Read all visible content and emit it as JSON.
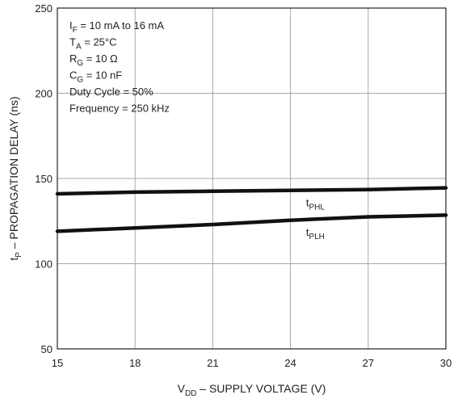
{
  "chart_data": {
    "type": "line",
    "xlabel": {
      "main": "V",
      "sub": "DD",
      "rest": " – SUPPLY VOLTAGE (V)"
    },
    "ylabel": {
      "main": "t",
      "sub": "P",
      "rest": " – PROPAGATION DELAY (ns)"
    },
    "xlim": [
      15,
      30
    ],
    "ylim": [
      50,
      250
    ],
    "xticks": [
      "15",
      "18",
      "21",
      "24",
      "27",
      "30"
    ],
    "yticks": [
      "50",
      "100",
      "150",
      "200",
      "250"
    ],
    "grid": true,
    "conditions": [
      {
        "main": "I",
        "sub": "F",
        "rest": " = 10 mA to 16 mA"
      },
      {
        "main": "T",
        "sub": "A",
        "rest": " = 25°C"
      },
      {
        "main": "R",
        "sub": "G",
        "rest": " = 10 Ω"
      },
      {
        "main": "C",
        "sub": "G",
        "rest": " = 10 nF"
      },
      {
        "main": "Duty Cycle = 50%",
        "sub": "",
        "rest": ""
      },
      {
        "main": "Frequency = 250 kHz",
        "sub": "",
        "rest": ""
      }
    ],
    "series": [
      {
        "name": "tPHL",
        "label_main": "t",
        "label_sub": "PHL",
        "x": [
          15,
          18,
          21,
          24,
          27,
          30
        ],
        "y": [
          141,
          142,
          142.5,
          143,
          143.5,
          144.5
        ]
      },
      {
        "name": "tPLH",
        "label_main": "t",
        "label_sub": "PLH",
        "x": [
          15,
          18,
          21,
          24,
          27,
          30
        ],
        "y": [
          119,
          121,
          123,
          125.5,
          127.5,
          128.5
        ]
      }
    ]
  }
}
